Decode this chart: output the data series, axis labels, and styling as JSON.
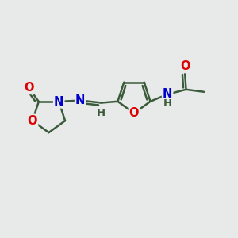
{
  "background_color": "#e8eaea",
  "bond_color": "#3a5a3a",
  "bond_width": 1.8,
  "atom_colors": {
    "O": "#dd0000",
    "N": "#0000cc",
    "C": "#3a5a3a",
    "H": "#3a5a3a"
  },
  "font_size": 10.5
}
